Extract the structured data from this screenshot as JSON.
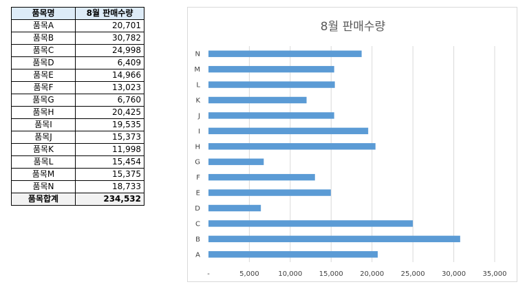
{
  "table": {
    "header": {
      "name": "품목명",
      "value": "8월 판매수량"
    },
    "rows": [
      {
        "name": "품목A",
        "value": "20,701"
      },
      {
        "name": "품목B",
        "value": "30,782"
      },
      {
        "name": "품목C",
        "value": "24,998"
      },
      {
        "name": "품목D",
        "value": "6,409"
      },
      {
        "name": "품목E",
        "value": "14,966"
      },
      {
        "name": "품목F",
        "value": "13,023"
      },
      {
        "name": "품목G",
        "value": "6,760"
      },
      {
        "name": "품목H",
        "value": "20,425"
      },
      {
        "name": "품목I",
        "value": "19,535"
      },
      {
        "name": "품목J",
        "value": "15,373"
      },
      {
        "name": "품목K",
        "value": "11,998"
      },
      {
        "name": "품목L",
        "value": "15,454"
      },
      {
        "name": "품목M",
        "value": "15,375"
      },
      {
        "name": "품목N",
        "value": "18,733"
      }
    ],
    "total": {
      "name": "품목합계",
      "value": "234,532"
    }
  },
  "chart_data": {
    "type": "bar",
    "orientation": "horizontal",
    "title": "8월 판매수량",
    "categories": [
      "A",
      "B",
      "C",
      "D",
      "E",
      "F",
      "G",
      "H",
      "I",
      "J",
      "K",
      "L",
      "M",
      "N"
    ],
    "values": [
      20701,
      30782,
      24998,
      6409,
      14966,
      13023,
      6760,
      20425,
      19535,
      15373,
      11998,
      15454,
      15375,
      18733
    ],
    "xlim": [
      0,
      35000
    ],
    "xticks": [
      0,
      5000,
      10000,
      15000,
      20000,
      25000,
      30000,
      35000
    ],
    "xtick_labels": [
      "-",
      "5,000",
      "10,000",
      "15,000",
      "20,000",
      "25,000",
      "30,000",
      "35,000"
    ],
    "grid": true,
    "legend": "none",
    "bar_color": "#5b9bd5",
    "grid_color": "#d9d9d9"
  }
}
